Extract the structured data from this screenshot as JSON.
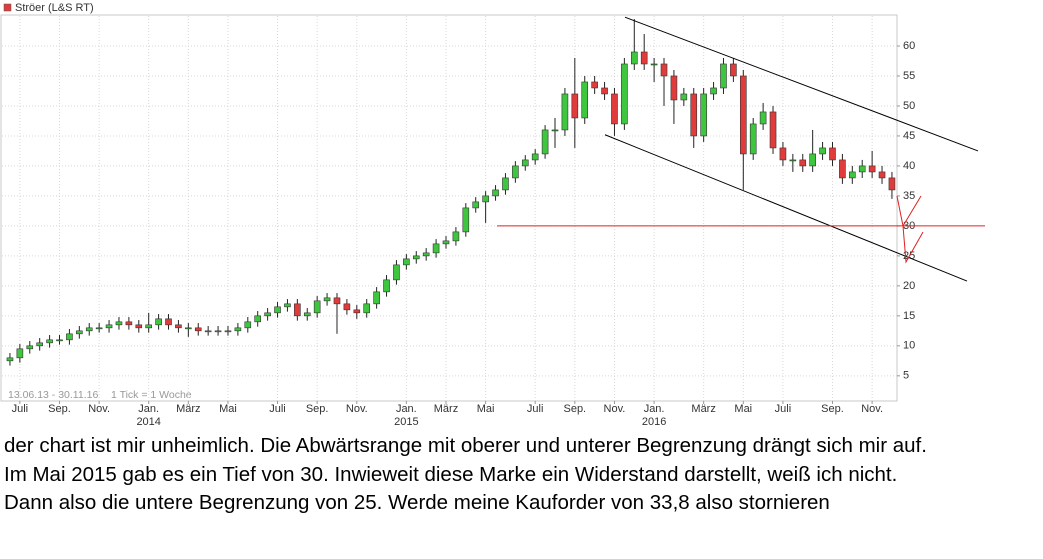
{
  "chart_data": {
    "type": "candlestick",
    "series_name": "Ströer (L&S RT)",
    "legend_color": "#e03c3c",
    "period_label": "13.06.13 - 30.11.16",
    "tick_label": "1 Tick = 1 Woche",
    "categories": [
      null,
      "Juli",
      null,
      null,
      null,
      "Sep.",
      null,
      null,
      null,
      "Nov.",
      null,
      null,
      null,
      null,
      "Jan.\n2014",
      null,
      null,
      null,
      "März",
      null,
      null,
      null,
      "Mai",
      null,
      null,
      null,
      null,
      "Juli",
      null,
      null,
      null,
      "Sep.",
      null,
      null,
      null,
      "Nov.",
      null,
      null,
      null,
      null,
      "Jan.\n2015",
      null,
      null,
      null,
      "März",
      null,
      null,
      null,
      "Mai",
      null,
      null,
      null,
      null,
      "Juli",
      null,
      null,
      null,
      "Sep.",
      null,
      null,
      null,
      "Nov.",
      null,
      null,
      null,
      "Jan.\n2016",
      null,
      null,
      null,
      null,
      "März",
      null,
      null,
      null,
      "Mai",
      null,
      null,
      null,
      "Juli",
      null,
      null,
      null,
      null,
      "Sep.",
      null,
      null,
      null,
      "Nov.",
      null,
      null
    ],
    "open": [
      7.5,
      8,
      9.5,
      10,
      10.5,
      11,
      11,
      12,
      12.5,
      13,
      13,
      13.5,
      14,
      13.5,
      13,
      13.5,
      14.5,
      13.5,
      13,
      13,
      12.5,
      12.5,
      12.5,
      12.5,
      13,
      14,
      15,
      15.5,
      16.5,
      17,
      15,
      15.5,
      17.5,
      18,
      17,
      16,
      15.5,
      17,
      19,
      21,
      23.5,
      24.5,
      25,
      25.5,
      27,
      27.5,
      29,
      33,
      34,
      35,
      36,
      38,
      40,
      41,
      42,
      46,
      46,
      52,
      48,
      54,
      53,
      52,
      47,
      57,
      59,
      57,
      57,
      55,
      51,
      52,
      45,
      52,
      53,
      57,
      55,
      42,
      47,
      49,
      43,
      41,
      41,
      40,
      42,
      43,
      41,
      38,
      39,
      40,
      39,
      38
    ],
    "high": [
      8.8,
      10.3,
      10.8,
      11.3,
      11.8,
      11.8,
      12.8,
      13.3,
      13.8,
      13.8,
      14.3,
      14.8,
      14.8,
      14.3,
      15.5,
      15.3,
      15.3,
      14.3,
      13.8,
      13.8,
      13.3,
      13.3,
      13.3,
      13.8,
      14.8,
      15.8,
      16.3,
      17.3,
      17.8,
      17.8,
      16.3,
      18.3,
      18.8,
      18.8,
      17.8,
      16.8,
      17.8,
      19.8,
      21.8,
      24.3,
      25.3,
      25.8,
      26.3,
      27.8,
      28.3,
      29.8,
      33.8,
      34.8,
      35.8,
      36.8,
      38.8,
      40.8,
      41.8,
      42.8,
      46.8,
      48,
      53,
      58,
      55,
      55,
      54,
      53,
      58,
      64.5,
      62,
      58,
      58,
      56,
      53,
      53,
      53,
      54,
      58,
      58,
      56,
      48,
      50.5,
      50,
      44,
      42,
      42,
      46,
      44,
      44,
      42,
      40,
      41,
      42.5,
      40,
      39
    ],
    "low": [
      6.7,
      7.2,
      8.7,
      9.2,
      9.7,
      10.2,
      10.2,
      11.2,
      11.7,
      12.2,
      12.2,
      12.7,
      12.7,
      12.2,
      12.2,
      12.7,
      12.7,
      12.2,
      11.5,
      11.7,
      11.7,
      11.7,
      11.7,
      11.7,
      12.2,
      13.2,
      14.2,
      14.7,
      15.7,
      14.2,
      14.2,
      14.7,
      16.7,
      12,
      15.2,
      14.5,
      14.7,
      16.2,
      18.2,
      20.2,
      22.7,
      23.7,
      24.2,
      24.7,
      26.2,
      26.7,
      28.2,
      32.2,
      30.5,
      34.2,
      35.2,
      37.2,
      39.2,
      40.2,
      41.2,
      43,
      45,
      43,
      47,
      52,
      51,
      45,
      46,
      56,
      56,
      54,
      50,
      47,
      50,
      43,
      44,
      51,
      52,
      54,
      36,
      41,
      46,
      42,
      40,
      39,
      39,
      39,
      41,
      40,
      37,
      37,
      38,
      38,
      37,
      34.5
    ],
    "close": [
      8,
      9.5,
      10,
      10.5,
      11,
      11,
      12,
      12.5,
      13,
      13,
      13.5,
      14,
      13.5,
      13,
      13.5,
      14.5,
      13.5,
      13,
      13,
      12.5,
      12.5,
      12.5,
      12.5,
      13,
      14,
      15,
      15.5,
      16.5,
      17,
      15,
      15.5,
      17.5,
      18,
      17,
      16,
      15.5,
      17,
      19,
      21,
      23.5,
      24.5,
      25,
      25.5,
      27,
      27.5,
      29,
      33,
      34,
      35,
      36,
      38,
      40,
      41,
      42,
      46,
      46,
      52,
      48,
      54,
      53,
      52,
      47,
      57,
      59,
      57,
      57,
      55,
      51,
      52,
      45,
      52,
      53,
      57,
      55,
      42,
      47,
      49,
      43,
      41,
      41,
      40,
      42,
      43,
      41,
      38,
      39,
      40,
      39,
      38,
      36
    ],
    "up_color": "#3fc63f",
    "down_color": "#e03c3c",
    "ylim": [
      0.8,
      65
    ],
    "yticks": [
      5,
      10,
      15,
      20,
      25,
      30,
      35,
      40,
      45,
      50,
      55,
      60
    ],
    "grid": true,
    "trend_lines": [
      {
        "start": 64.8,
        "end": 42.5
      },
      {
        "start": 45.2,
        "end": 20.8
      }
    ],
    "level_line": 30,
    "level_color": "#e02020"
  },
  "comment": {
    "lines": [
      "der chart ist mir unheimlich. Die Abwärtsrange mit oberer und unterer Begrenzung drängt sich mir auf.",
      "Im Mai 2015 gab es ein Tief von 30. Inwieweit diese Marke ein Widerstand darstellt, weiß ich nicht.",
      "Dann also die untere Begrenzung von 25. Werde meine Kauforder von 33,8 also stornieren"
    ]
  }
}
